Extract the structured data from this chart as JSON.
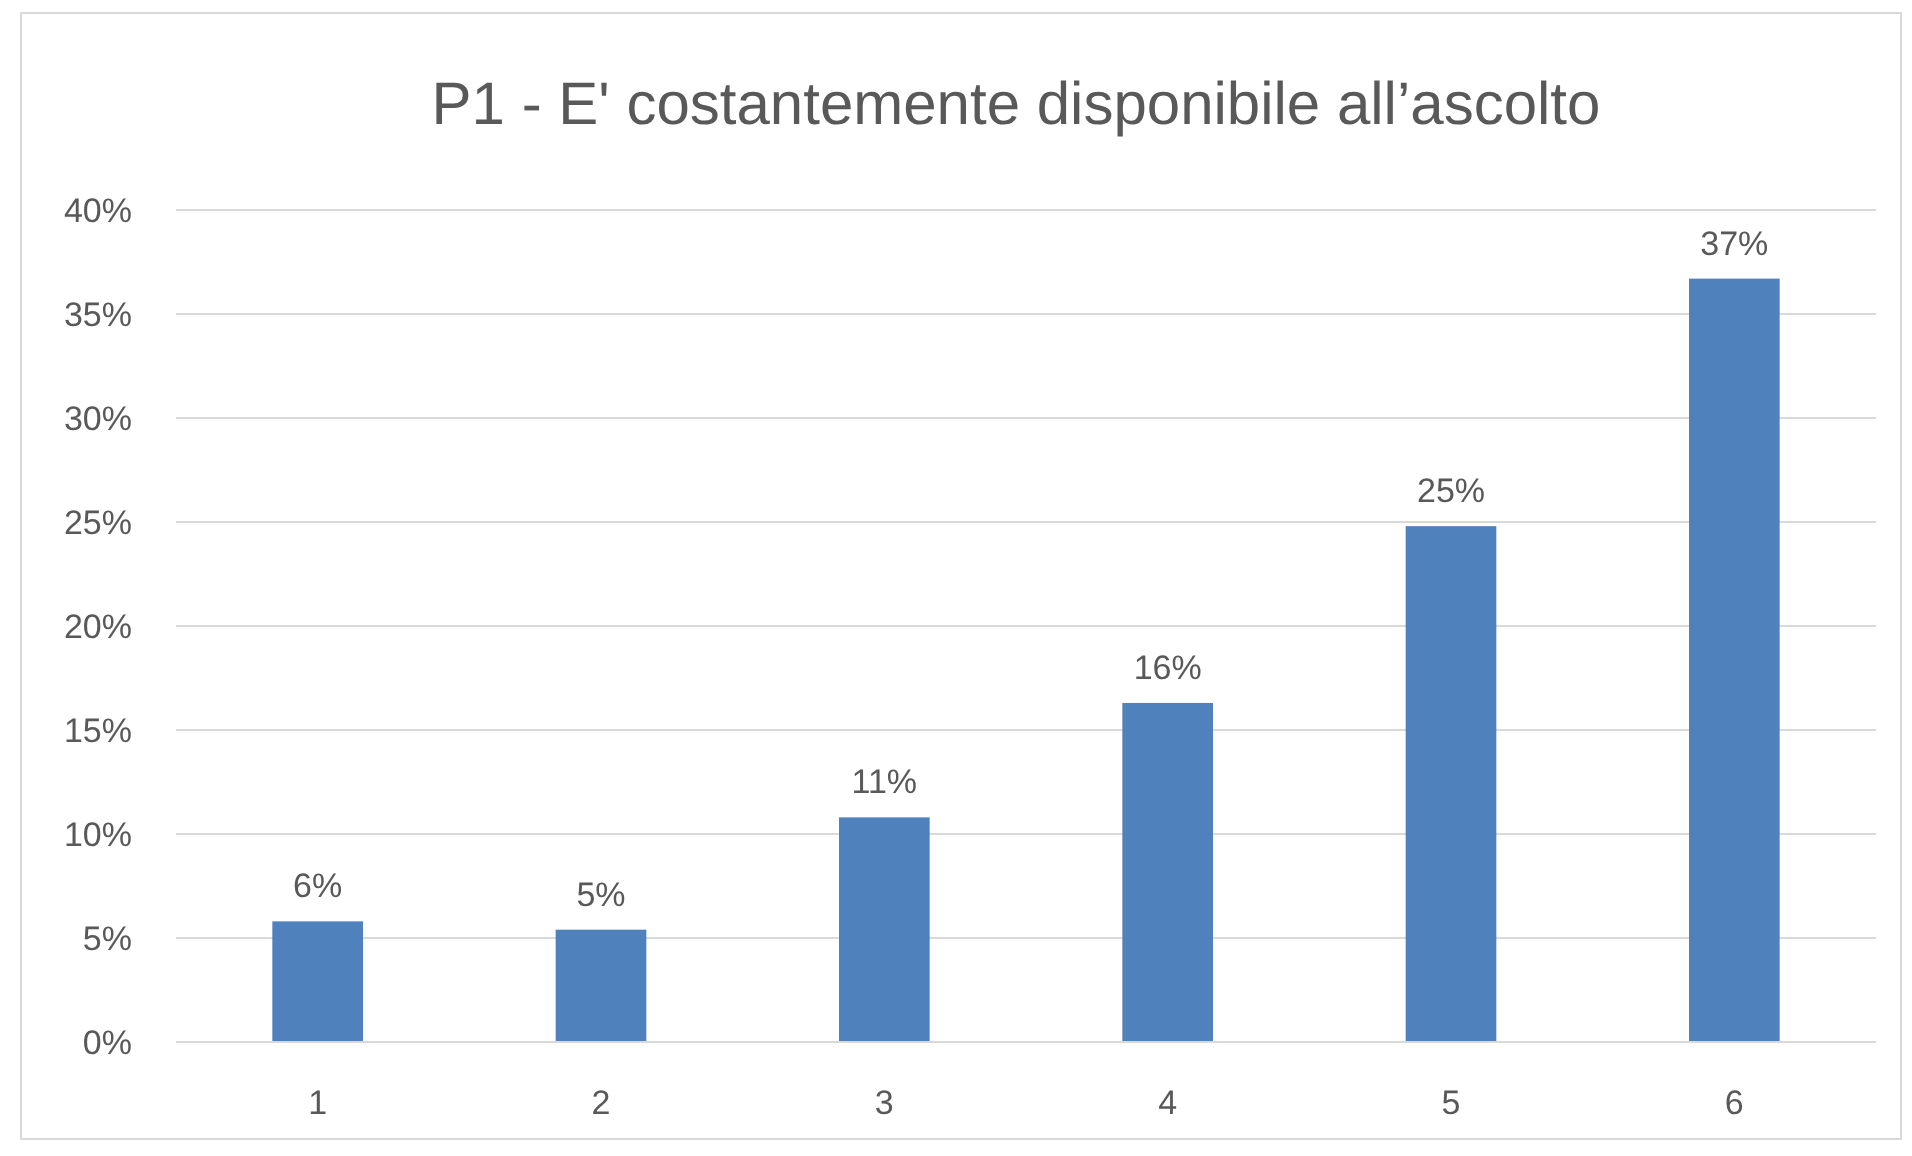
{
  "chart_data": {
    "type": "bar",
    "title": "P1 - E' costantemente disponibile all’ascolto",
    "categories": [
      "1",
      "2",
      "3",
      "4",
      "5",
      "6"
    ],
    "values": [
      5.8,
      5.4,
      10.8,
      16.3,
      24.8,
      36.7
    ],
    "value_labels": [
      "6%",
      "5%",
      "11%",
      "16%",
      "25%",
      "37%"
    ],
    "color": "#4f81bd",
    "ylim": [
      0,
      40
    ],
    "yticks": [
      {
        "value": 0,
        "label": "0%"
      },
      {
        "value": 5,
        "label": "5%"
      },
      {
        "value": 10,
        "label": "10%"
      },
      {
        "value": 15,
        "label": "15%"
      },
      {
        "value": 20,
        "label": "20%"
      },
      {
        "value": 25,
        "label": "25%"
      },
      {
        "value": 30,
        "label": "30%"
      },
      {
        "value": 35,
        "label": "35%"
      },
      {
        "value": 40,
        "label": "40%"
      }
    ],
    "grid": "y"
  }
}
